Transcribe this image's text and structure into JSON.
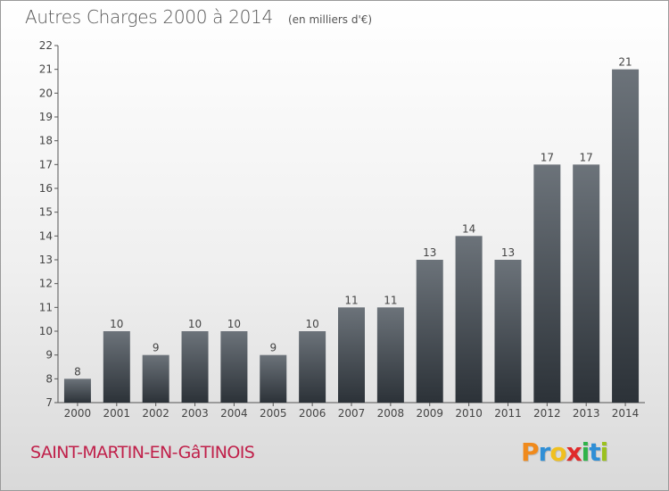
{
  "header": {
    "title": "Autres Charges 2000 à 2014",
    "unit": "(en milliers d'€)"
  },
  "footer": {
    "commune": "SAINT-MARTIN-EN-GâTINOIS",
    "logo": {
      "letters": [
        "P",
        "r",
        "o",
        "x",
        "i",
        "t",
        "i"
      ],
      "colors": [
        "#f08a1c",
        "#2f8fd6",
        "#f0c020",
        "#e02a2a",
        "#2fb34a",
        "#2f8fd6",
        "#9bc11e"
      ]
    }
  },
  "chart_data": {
    "type": "bar",
    "title": "Autres Charges 2000 à 2014",
    "subtitle": "(en milliers d'€)",
    "xlabel": "",
    "ylabel": "",
    "categories": [
      "2000",
      "2001",
      "2002",
      "2003",
      "2004",
      "2005",
      "2006",
      "2007",
      "2008",
      "2009",
      "2010",
      "2011",
      "2012",
      "2013",
      "2014"
    ],
    "values": [
      8,
      10,
      9,
      10,
      10,
      9,
      10,
      11,
      11,
      13,
      14,
      13,
      17,
      17,
      21
    ],
    "ylim": [
      7,
      22
    ],
    "yticks": [
      7,
      8,
      9,
      10,
      11,
      12,
      13,
      14,
      15,
      16,
      17,
      18,
      19,
      20,
      21,
      22
    ],
    "grid": false,
    "legend": "none",
    "colors": {
      "bar_top": "#6c737a",
      "bar_bottom": "#2c3238",
      "axis": "#555555",
      "text": "#444444"
    }
  }
}
